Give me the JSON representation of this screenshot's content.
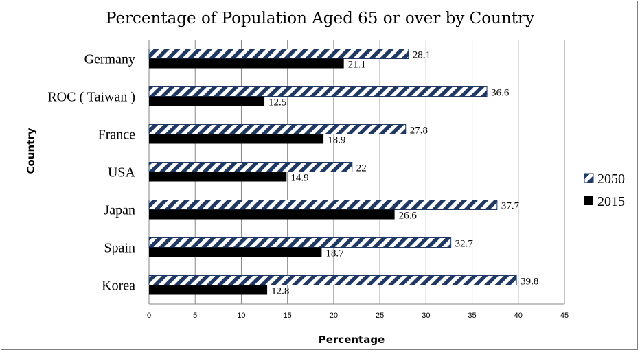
{
  "chart_data": {
    "type": "bar",
    "orientation": "horizontal",
    "title": "Percentage of Population Aged 65 or over by Country",
    "xlabel": "Percentage",
    "ylabel": "Country",
    "categories": [
      "Germany",
      "ROC ( Taiwan )",
      "France",
      "USA",
      "Japan",
      "Spain",
      "Korea"
    ],
    "series": [
      {
        "name": "2050",
        "values": [
          28.1,
          36.6,
          27.8,
          22,
          37.7,
          32.7,
          39.8
        ],
        "data_labels": [
          "28.1",
          "36.6",
          "27.8",
          "22",
          "37.7",
          "32.7",
          "39.8"
        ],
        "pattern": "diagonal-stripes",
        "color": "#1f3864"
      },
      {
        "name": "2015",
        "values": [
          21.1,
          12.5,
          18.9,
          14.9,
          26.6,
          18.7,
          12.8
        ],
        "data_labels": [
          "21.1",
          "12.5",
          "18.9",
          "14.9",
          "26.6",
          "18.7",
          "12.8"
        ],
        "pattern": "solid",
        "color": "#000000"
      }
    ],
    "xlim": [
      0,
      45
    ],
    "xticks": [
      "0",
      "5",
      "10",
      "15",
      "20",
      "25",
      "30",
      "35",
      "40",
      "45"
    ],
    "grid": "vertical",
    "legend_position": "right"
  }
}
